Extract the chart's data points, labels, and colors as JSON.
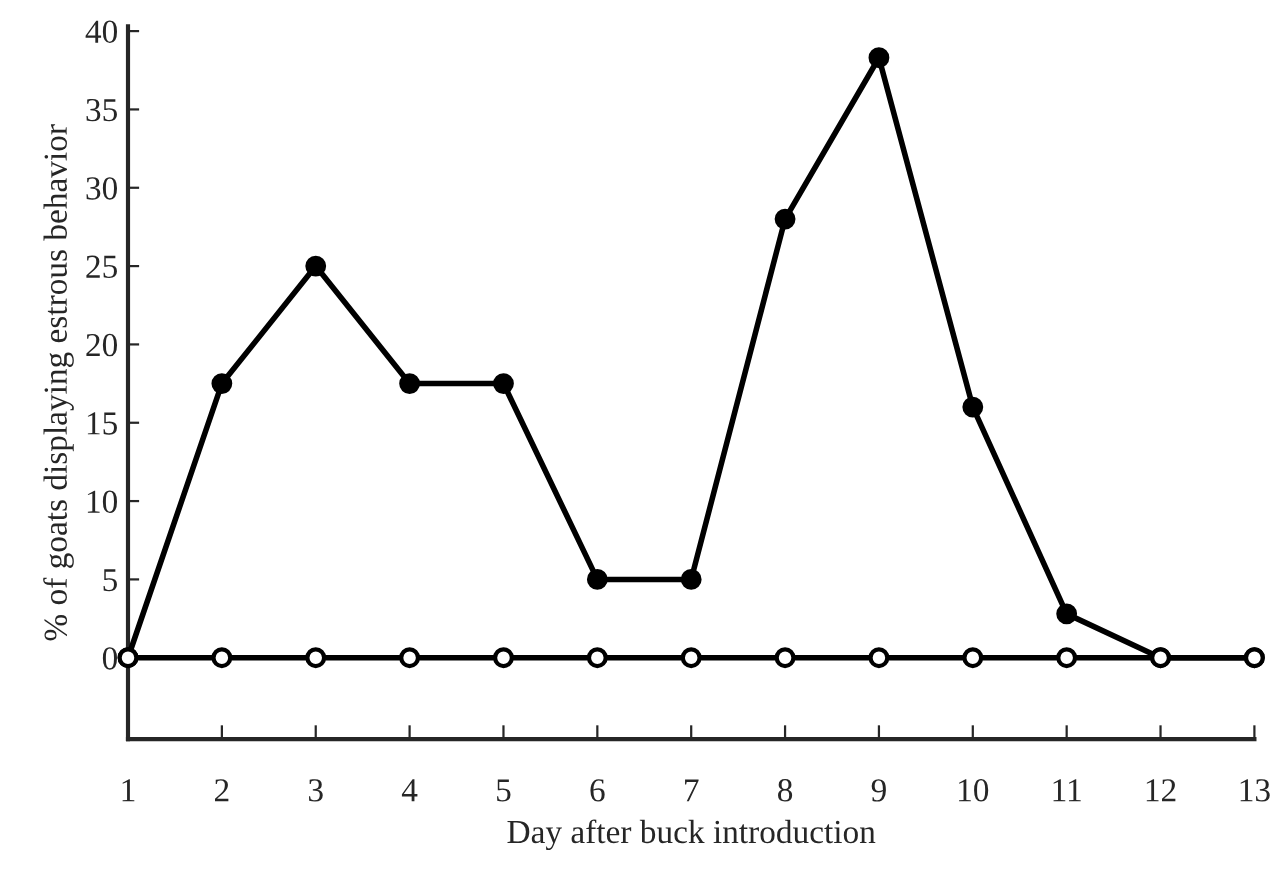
{
  "chart_data": {
    "type": "line",
    "xlabel": "Day after buck introduction",
    "ylabel": "% of goats displaying estrous behavior",
    "x": [
      1,
      2,
      3,
      4,
      5,
      6,
      7,
      8,
      9,
      10,
      11,
      12,
      13
    ],
    "series": [
      {
        "color": "#000000",
        "values": [
          0,
          17.5,
          25,
          17.5,
          17.5,
          5,
          5,
          28,
          38.3,
          16,
          2.8,
          0,
          0
        ]
      },
      {
        "color": "#000000",
        "values": [
          0,
          0,
          0,
          0,
          0,
          0,
          0,
          0,
          0,
          0,
          0,
          0,
          0
        ]
      }
    ],
    "xlim": [
      1,
      13
    ],
    "xticks": [
      1,
      2,
      3,
      4,
      5,
      6,
      7,
      8,
      9,
      10,
      11,
      12,
      13
    ],
    "ylim": [
      -5.2,
      40.3
    ],
    "yticks": [
      0,
      5,
      10,
      15,
      20,
      25,
      30,
      35,
      40
    ],
    "marker": "circle",
    "line_style": "solid",
    "grid": false,
    "legend": false
  }
}
